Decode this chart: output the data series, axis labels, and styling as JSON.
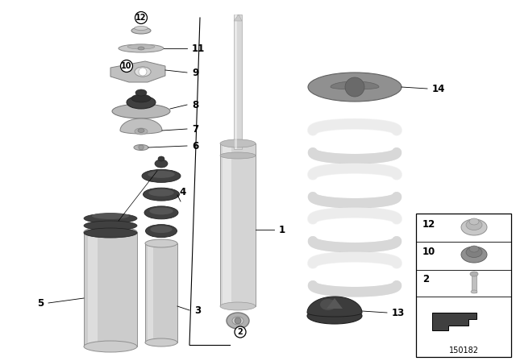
{
  "background_color": "#ffffff",
  "part_number": "150182",
  "gray_light": "#d0d0d0",
  "gray_mid": "#b0b0b0",
  "gray_dark": "#808080",
  "gray_darker": "#505050",
  "black": "#000000",
  "spring_color": "#e8e8e8",
  "bump_color": "#484848",
  "dark_rubber": "#3a3a3a"
}
